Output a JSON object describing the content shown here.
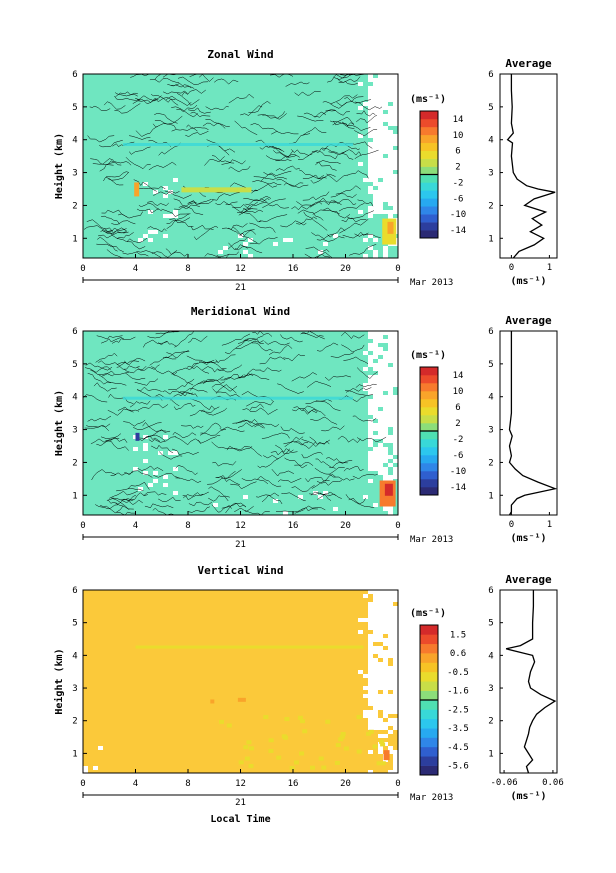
{
  "chart_data": [
    {
      "type": "heatmap",
      "title": "Zonal Wind",
      "ylabel": "Height (km)",
      "xticks": [
        "0",
        "4",
        "8",
        "12",
        "16",
        "20",
        "0"
      ],
      "yticks": [
        "1",
        "2",
        "3",
        "4",
        "5",
        "6"
      ],
      "xlim": [
        0,
        24
      ],
      "ylim": [
        0.4,
        6
      ],
      "date_day": "21",
      "date_label": "Mar 2013",
      "colorbar": {
        "unit": "(ms⁻¹)",
        "ticks": [
          "14",
          "10",
          "6",
          "2",
          "-2",
          "-6",
          "-10",
          "-14"
        ],
        "range": [
          -16,
          16
        ]
      },
      "field_note": "mostly near 0 ms-1; positive patches at 2.5 km (~4 ms-1) and near 1.3 km at local 23 h (~8 ms-1)",
      "profile": {
        "title": "Average",
        "xlabel": "(ms⁻¹)",
        "xticks": [
          "0",
          "1"
        ],
        "xlim": [
          -0.3,
          1.2
        ],
        "heights": [
          0.4,
          0.6,
          0.8,
          1.0,
          1.2,
          1.4,
          1.6,
          1.8,
          2.0,
          2.2,
          2.4,
          2.5,
          2.6,
          2.8,
          3.0,
          3.5,
          3.9,
          4.0,
          4.2,
          4.5,
          5.0,
          5.5,
          6.0
        ],
        "values": [
          0.05,
          0.2,
          0.6,
          0.85,
          0.5,
          0.8,
          0.55,
          0.9,
          0.35,
          0.6,
          1.15,
          0.7,
          0.4,
          0.15,
          0.05,
          0.0,
          0.03,
          -0.1,
          0.05,
          0.0,
          0.02,
          0.0,
          0.0
        ]
      }
    },
    {
      "type": "heatmap",
      "title": "Meridional Wind",
      "ylabel": "Height (km)",
      "xticks": [
        "0",
        "4",
        "8",
        "12",
        "16",
        "20",
        "0"
      ],
      "yticks": [
        "1",
        "2",
        "3",
        "4",
        "5",
        "6"
      ],
      "xlim": [
        0,
        24
      ],
      "ylim": [
        0.4,
        6
      ],
      "date_day": "21",
      "date_label": "Mar 2013",
      "colorbar": {
        "unit": "(ms⁻¹)",
        "ticks": [
          "14",
          "10",
          "6",
          "2",
          "-2",
          "-6",
          "-10",
          "-14"
        ],
        "range": [
          -16,
          16
        ]
      },
      "field_note": "mostly near 0 ms-1; strong positive patch near 1.2 km at local 23 h (~12 ms-1)",
      "profile": {
        "title": "Average",
        "xlabel": "(ms⁻¹)",
        "xticks": [
          "0",
          "1"
        ],
        "xlim": [
          -0.3,
          1.2
        ],
        "heights": [
          0.4,
          0.5,
          0.7,
          0.9,
          1.0,
          1.2,
          1.4,
          1.6,
          1.8,
          2.0,
          2.2,
          2.5,
          2.8,
          3.0,
          3.5,
          4.0,
          5.0,
          6.0
        ],
        "values": [
          -0.05,
          0.0,
          0.0,
          0.15,
          0.35,
          1.15,
          0.7,
          0.3,
          0.1,
          -0.05,
          0.0,
          -0.05,
          0.02,
          -0.05,
          0.0,
          0.0,
          0.0,
          0.0
        ]
      }
    },
    {
      "type": "heatmap",
      "title": "Vertical Wind",
      "ylabel": "Height (km)",
      "xlabel": "Local Time",
      "xticks": [
        "0",
        "4",
        "8",
        "12",
        "16",
        "20",
        "0"
      ],
      "yticks": [
        "1",
        "2",
        "3",
        "4",
        "5",
        "6"
      ],
      "xlim": [
        0,
        24
      ],
      "ylim": [
        0.4,
        6
      ],
      "date_day": "21",
      "date_label": "Mar 2013",
      "colorbar": {
        "unit": "(ms⁻¹)",
        "ticks": [
          "1.5",
          "0.6",
          "-0.5",
          "-1.6",
          "-2.5",
          "-3.5",
          "-4.5",
          "-5.6"
        ],
        "range": [
          -6,
          2
        ]
      },
      "field_note": "mostly near 0.5 ms-1; stronger positive spots near 2.6 km and near 1.0 km at local 23 h",
      "profile": {
        "title": "Average",
        "xlabel": "(ms⁻¹)",
        "xticks": [
          "-0.06",
          "0.06"
        ],
        "xlim": [
          -0.07,
          0.07
        ],
        "heights": [
          0.4,
          0.6,
          0.8,
          1.0,
          1.2,
          1.4,
          1.6,
          1.8,
          2.0,
          2.2,
          2.4,
          2.6,
          2.8,
          3.0,
          3.2,
          3.5,
          3.8,
          4.0,
          4.2,
          4.3,
          4.5,
          5.0,
          5.5,
          6.0
        ],
        "values": [
          0.0,
          -0.005,
          0.01,
          0.0,
          -0.01,
          -0.005,
          0.0,
          0.003,
          0.01,
          0.02,
          0.04,
          0.065,
          0.03,
          0.005,
          0.0,
          0.005,
          0.015,
          0.01,
          -0.055,
          -0.02,
          0.01,
          0.01,
          0.012,
          0.012
        ]
      }
    }
  ]
}
